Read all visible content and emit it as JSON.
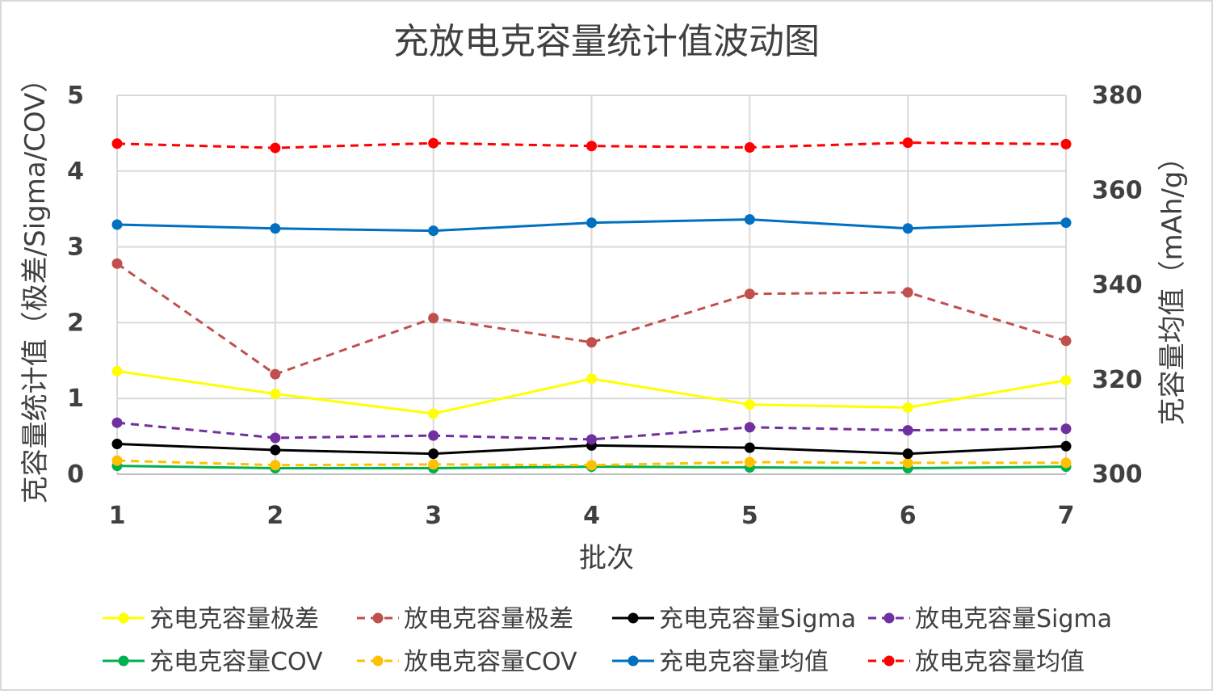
{
  "chart_data": {
    "type": "line",
    "title": "充放电克容量统计值波动图",
    "xlabel": "批次",
    "ylabel_left": "克容量统计值（极差/Sigma/COV）",
    "ylabel_right": "克容量均值（mAh/g）",
    "x": [
      "1",
      "2",
      "3",
      "4",
      "5",
      "6",
      "7"
    ],
    "y_left": {
      "min": 0,
      "max": 5,
      "ticks": [
        "0",
        "1",
        "2",
        "3",
        "4",
        "5"
      ]
    },
    "y_right": {
      "min": 300,
      "max": 380,
      "ticks": [
        "300",
        "320",
        "340",
        "360",
        "380"
      ]
    },
    "grid": true,
    "legend_position": "bottom",
    "series": [
      {
        "name": "充电克容量极差",
        "axis": "left",
        "style": "solid",
        "color": "#FFFF00",
        "values": [
          1.36,
          1.06,
          0.8,
          1.26,
          0.92,
          0.88,
          1.24
        ]
      },
      {
        "name": "放电克容量极差",
        "axis": "left",
        "style": "dashed",
        "color": "#C0504D",
        "values": [
          2.78,
          1.32,
          2.06,
          1.74,
          2.38,
          2.4,
          1.76
        ]
      },
      {
        "name": "充电克容量Sigma",
        "axis": "left",
        "style": "solid",
        "color": "#000000",
        "values": [
          0.4,
          0.32,
          0.27,
          0.38,
          0.35,
          0.27,
          0.37
        ]
      },
      {
        "name": "放电克容量Sigma",
        "axis": "left",
        "style": "dashed",
        "color": "#7030A0",
        "values": [
          0.68,
          0.48,
          0.51,
          0.46,
          0.62,
          0.58,
          0.6
        ]
      },
      {
        "name": "充电克容量COV",
        "axis": "left",
        "style": "solid",
        "color": "#00B050",
        "values": [
          0.11,
          0.08,
          0.08,
          0.1,
          0.09,
          0.08,
          0.1
        ]
      },
      {
        "name": "放电克容量COV",
        "axis": "left",
        "style": "dashed",
        "color": "#FFC000",
        "values": [
          0.18,
          0.12,
          0.13,
          0.12,
          0.16,
          0.15,
          0.15
        ]
      },
      {
        "name": "充电克容量均值",
        "axis": "right",
        "style": "solid",
        "color": "#0070C0",
        "values": [
          352.7,
          351.9,
          351.4,
          353.1,
          353.8,
          351.9,
          353.1
        ]
      },
      {
        "name": "放电克容量均值",
        "axis": "right",
        "style": "dashed",
        "color": "#FF0000",
        "values": [
          369.8,
          368.9,
          369.9,
          369.3,
          369.0,
          370.0,
          369.7
        ]
      }
    ]
  }
}
